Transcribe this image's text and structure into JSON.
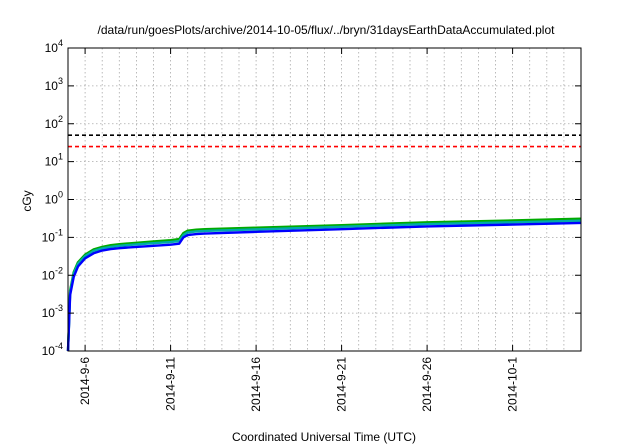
{
  "chart_data": {
    "type": "line",
    "title": "/data/run/goesPlots/archive/2014-10-05/flux/../bryn/31daysEarthDataAccumulated.plot",
    "xlabel": "Coordinated Universal Time (UTC)",
    "ylabel": "cGy",
    "y_scale": "log",
    "ylim": [
      0.0001,
      10000
    ],
    "xlim": [
      "2014-09-05",
      "2014-10-05"
    ],
    "grid": true,
    "legend": "none",
    "x_ticks": [
      "2014-9-6",
      "2014-9-11",
      "2014-9-16",
      "2014-9-21",
      "2014-9-26",
      "2014-10-1"
    ],
    "y_ticks": [
      {
        "value": 0.0001,
        "base": "10",
        "exp": "-4"
      },
      {
        "value": 0.001,
        "base": "10",
        "exp": "-3"
      },
      {
        "value": 0.01,
        "base": "10",
        "exp": "-2"
      },
      {
        "value": 0.1,
        "base": "10",
        "exp": "-1"
      },
      {
        "value": 1,
        "base": "10",
        "exp": "0"
      },
      {
        "value": 10,
        "base": "10",
        "exp": "1"
      },
      {
        "value": 100,
        "base": "10",
        "exp": "2"
      },
      {
        "value": 1000,
        "base": "10",
        "exp": "3"
      },
      {
        "value": 10000,
        "base": "10",
        "exp": "4"
      }
    ],
    "reference_lines": [
      {
        "value": 50,
        "color": "#000000",
        "style": "dashed"
      },
      {
        "value": 25,
        "color": "#ff0000",
        "style": "dashed"
      }
    ],
    "series": [
      {
        "color": "#00aa00",
        "points": [
          [
            "2014-09-05 00:00",
            0.0001
          ],
          [
            "2014-09-05 03:00",
            0.004
          ],
          [
            "2014-09-05 08:00",
            0.012
          ],
          [
            "2014-09-05 14:00",
            0.022
          ],
          [
            "2014-09-06 00:00",
            0.035
          ],
          [
            "2014-09-06 12:00",
            0.048
          ],
          [
            "2014-09-07 00:00",
            0.056
          ],
          [
            "2014-09-07 12:00",
            0.062
          ],
          [
            "2014-09-08 00:00",
            0.066
          ],
          [
            "2014-09-09 00:00",
            0.072
          ],
          [
            "2014-09-10 00:00",
            0.078
          ],
          [
            "2014-09-11 00:00",
            0.084
          ],
          [
            "2014-09-11 12:00",
            0.09
          ],
          [
            "2014-09-11 18:00",
            0.13
          ],
          [
            "2014-09-12 00:00",
            0.15
          ],
          [
            "2014-09-12 12:00",
            0.16
          ],
          [
            "2014-09-13 00:00",
            0.165
          ],
          [
            "2014-09-16 00:00",
            0.18
          ],
          [
            "2014-09-21 00:00",
            0.21
          ],
          [
            "2014-09-26 00:00",
            0.25
          ],
          [
            "2014-10-01 00:00",
            0.28
          ],
          [
            "2014-10-05 00:00",
            0.31
          ]
        ]
      },
      {
        "color": "#00aaaa",
        "points": [
          [
            "2014-09-05 00:00",
            0.0001
          ],
          [
            "2014-09-05 03:00",
            0.0035
          ],
          [
            "2014-09-05 08:00",
            0.011
          ],
          [
            "2014-09-05 14:00",
            0.02
          ],
          [
            "2014-09-06 00:00",
            0.032
          ],
          [
            "2014-09-06 12:00",
            0.044
          ],
          [
            "2014-09-07 00:00",
            0.051
          ],
          [
            "2014-09-07 12:00",
            0.056
          ],
          [
            "2014-09-08 00:00",
            0.06
          ],
          [
            "2014-09-09 00:00",
            0.065
          ],
          [
            "2014-09-10 00:00",
            0.07
          ],
          [
            "2014-09-11 00:00",
            0.075
          ],
          [
            "2014-09-11 12:00",
            0.08
          ],
          [
            "2014-09-11 18:00",
            0.115
          ],
          [
            "2014-09-12 00:00",
            0.135
          ],
          [
            "2014-09-12 12:00",
            0.143
          ],
          [
            "2014-09-13 00:00",
            0.148
          ],
          [
            "2014-09-16 00:00",
            0.162
          ],
          [
            "2014-09-21 00:00",
            0.19
          ],
          [
            "2014-09-26 00:00",
            0.225
          ],
          [
            "2014-10-01 00:00",
            0.25
          ],
          [
            "2014-10-05 00:00",
            0.275
          ]
        ]
      },
      {
        "color": "#0000ff",
        "points": [
          [
            "2014-09-05 00:00",
            0.0001
          ],
          [
            "2014-09-05 03:00",
            0.003
          ],
          [
            "2014-09-05 08:00",
            0.009
          ],
          [
            "2014-09-05 14:00",
            0.017
          ],
          [
            "2014-09-06 00:00",
            0.028
          ],
          [
            "2014-09-06 12:00",
            0.038
          ],
          [
            "2014-09-07 00:00",
            0.045
          ],
          [
            "2014-09-07 12:00",
            0.049
          ],
          [
            "2014-09-08 00:00",
            0.052
          ],
          [
            "2014-09-09 00:00",
            0.056
          ],
          [
            "2014-09-10 00:00",
            0.06
          ],
          [
            "2014-09-11 00:00",
            0.064
          ],
          [
            "2014-09-11 12:00",
            0.068
          ],
          [
            "2014-09-11 18:00",
            0.1
          ],
          [
            "2014-09-12 00:00",
            0.115
          ],
          [
            "2014-09-12 12:00",
            0.122
          ],
          [
            "2014-09-13 00:00",
            0.126
          ],
          [
            "2014-09-16 00:00",
            0.14
          ],
          [
            "2014-09-21 00:00",
            0.165
          ],
          [
            "2014-09-26 00:00",
            0.195
          ],
          [
            "2014-10-01 00:00",
            0.218
          ],
          [
            "2014-10-05 00:00",
            0.24
          ]
        ]
      }
    ]
  }
}
